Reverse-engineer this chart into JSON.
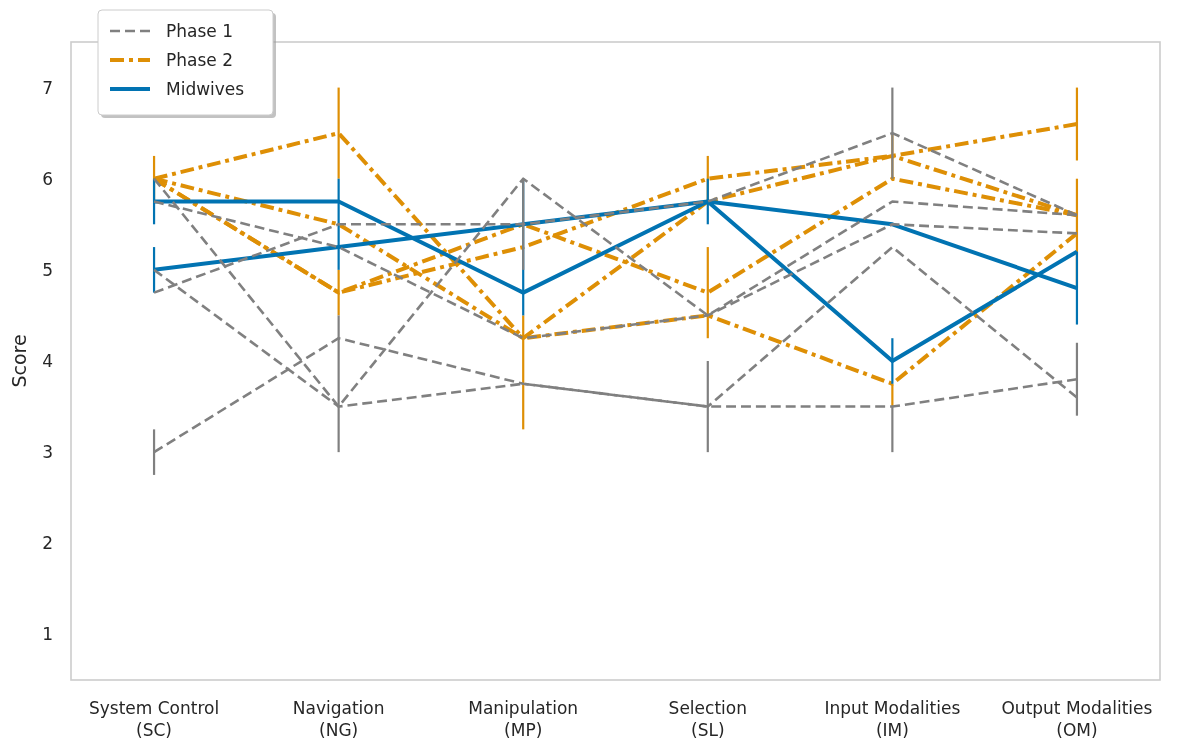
{
  "chart_data": {
    "type": "line",
    "ylabel": "Score",
    "categories": [
      "System Control\n(SC)",
      "Navigation\n(NG)",
      "Manipulation\n(MP)",
      "Selection\n(SL)",
      "Input Modalities\n(IM)",
      "Output Modalities\n(OM)"
    ],
    "ylim": [
      0.5,
      7.5
    ],
    "yticks": [
      1,
      2,
      3,
      4,
      5,
      6,
      7
    ],
    "grid": false,
    "legend": "top left",
    "marker": "none",
    "series": [
      {
        "name": "Phase 1",
        "color": "#808080",
        "line_style": "dashed",
        "values": [
          6.0,
          3.5,
          6.0,
          4.5,
          5.75,
          5.6
        ]
      },
      {
        "color": "#808080",
        "line_style": "dashed",
        "values": [
          5.75,
          5.25,
          4.25,
          4.5,
          5.5,
          5.4
        ]
      },
      {
        "color": "#808080",
        "line_style": "dashed",
        "values": [
          5.0,
          3.5,
          3.75,
          3.5,
          5.25,
          3.6
        ],
        "errors": [
          null,
          0.5,
          null,
          null,
          null,
          null
        ]
      },
      {
        "color": "#808080",
        "line_style": "dashed",
        "values": [
          4.75,
          5.5,
          5.5,
          5.75,
          6.5,
          5.6
        ],
        "errors": [
          null,
          null,
          0.5,
          null,
          0.5,
          null
        ]
      },
      {
        "color": "#808080",
        "line_style": "dashed",
        "values": [
          3.0,
          4.25,
          3.75,
          3.5,
          3.5,
          3.8
        ],
        "errors": [
          0.25,
          0.25,
          null,
          0.5,
          [
            3.0,
            3.5
          ],
          0.4
        ]
      },
      {
        "name": "Phase 2",
        "color": "#de8f05",
        "line_style": "dashdot",
        "values": [
          6.0,
          6.5,
          4.25,
          5.75,
          6.25,
          5.6
        ],
        "errors": [
          0.25,
          0.5,
          [
            3.25,
            4.5
          ],
          null,
          0.25,
          null
        ]
      },
      {
        "color": "#de8f05",
        "line_style": "dashdot",
        "values": [
          6.0,
          5.5,
          4.25,
          4.5,
          3.75,
          5.4
        ],
        "errors": [
          null,
          null,
          null,
          null,
          [
            3.5,
            3.75
          ],
          0.6
        ]
      },
      {
        "color": "#de8f05",
        "line_style": "dashdot",
        "values": [
          6.0,
          4.75,
          5.5,
          4.75,
          6.0,
          5.6
        ],
        "errors": [
          null,
          0.25,
          null,
          0.5,
          null,
          null
        ]
      },
      {
        "color": "#de8f05",
        "line_style": "dashdot",
        "values": [
          6.0,
          4.75,
          5.25,
          6.0,
          6.25,
          6.6
        ],
        "errors": [
          null,
          null,
          null,
          0.25,
          null,
          0.4
        ]
      },
      {
        "name": "Midwives",
        "color": "#0173b2",
        "line_style": "solid",
        "values": [
          5.75,
          5.75,
          4.75,
          5.75,
          5.5,
          4.8
        ],
        "errors": [
          0.25,
          [
            5.0,
            6.0
          ],
          [
            4.5,
            6.0
          ],
          0.25,
          null,
          0.4
        ]
      },
      {
        "color": "#0173b2",
        "line_style": "solid",
        "values": [
          5.0,
          5.25,
          5.5,
          5.75,
          4.0,
          5.2
        ],
        "errors": [
          0.25,
          null,
          null,
          null,
          0.25,
          null
        ]
      }
    ]
  }
}
